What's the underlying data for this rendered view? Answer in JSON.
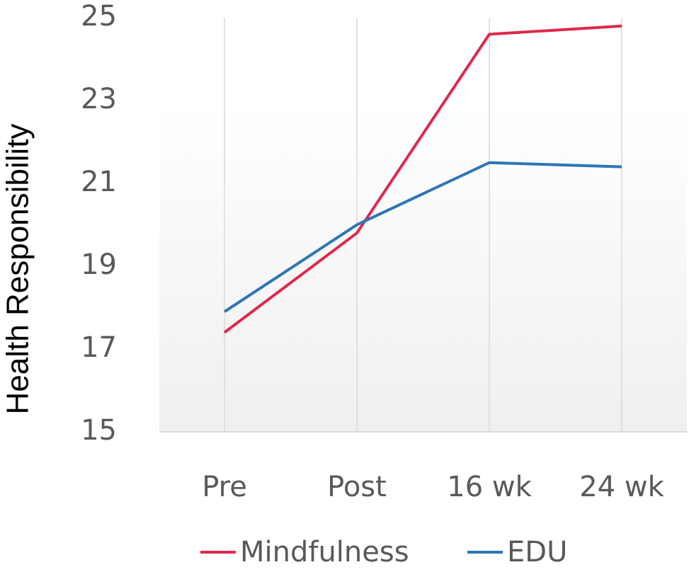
{
  "chart_data": {
    "type": "line",
    "ylabel": "Health Responsibility",
    "categories": [
      "Pre",
      "Post",
      "16 wk",
      "24 wk"
    ],
    "series": [
      {
        "name": "Mindfulness",
        "color": "#e0294a",
        "values": [
          17.4,
          19.8,
          24.6,
          24.8
        ]
      },
      {
        "name": "EDU",
        "color": "#2e75b6",
        "values": [
          17.9,
          20.0,
          21.5,
          21.4
        ]
      }
    ],
    "ylim": [
      15,
      25
    ],
    "yticks": [
      15,
      17,
      19,
      21,
      23,
      25
    ],
    "grid": true,
    "legend": "bottom"
  }
}
